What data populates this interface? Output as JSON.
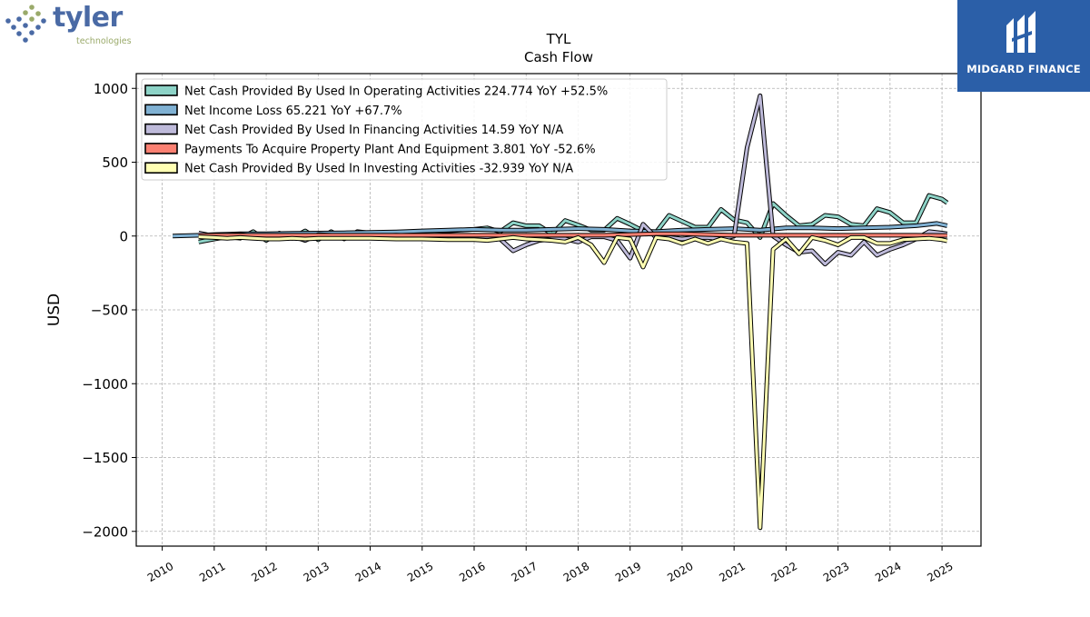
{
  "logo_left": {
    "word": "tyler",
    "sub": "technologies"
  },
  "logo_right": {
    "text": "MIDGARD FINANCE"
  },
  "chart_data": {
    "type": "line",
    "title": "TYL",
    "subtitle": "Cash Flow",
    "ylabel": "USD",
    "xlabel": "",
    "xlim": [
      2009.5,
      2025.75
    ],
    "ylim": [
      -2100,
      1100
    ],
    "yticks": [
      1000,
      500,
      0,
      -500,
      -1000,
      -1500,
      -2000
    ],
    "ytick_labels": [
      "1000",
      "500",
      "0",
      "−500",
      "−1000",
      "−1500",
      "−2000"
    ],
    "xticks": [
      2010,
      2011,
      2012,
      2013,
      2014,
      2015,
      2016,
      2017,
      2018,
      2019,
      2020,
      2021,
      2022,
      2023,
      2024,
      2025
    ],
    "grid": true,
    "legend_position": "upper-left",
    "series": [
      {
        "name": "Net Cash Provided By Used In Operating Activities  224.774 YoY +52.5%",
        "color": "#8dd3c7",
        "points": [
          [
            2010.7,
            -40
          ],
          [
            2011.0,
            -20
          ],
          [
            2011.25,
            -5
          ],
          [
            2011.5,
            -15
          ],
          [
            2011.75,
            30
          ],
          [
            2012.0,
            -30
          ],
          [
            2012.25,
            20
          ],
          [
            2012.5,
            -15
          ],
          [
            2012.75,
            35
          ],
          [
            2013.0,
            -25
          ],
          [
            2013.25,
            30
          ],
          [
            2013.5,
            -20
          ],
          [
            2013.75,
            30
          ],
          [
            2014.0,
            20
          ],
          [
            2014.5,
            20
          ],
          [
            2015.0,
            25
          ],
          [
            2015.5,
            35
          ],
          [
            2016.0,
            45
          ],
          [
            2016.25,
            55
          ],
          [
            2016.5,
            30
          ],
          [
            2016.75,
            90
          ],
          [
            2017.0,
            70
          ],
          [
            2017.25,
            70
          ],
          [
            2017.5,
            15
          ],
          [
            2017.75,
            105
          ],
          [
            2018.0,
            75
          ],
          [
            2018.25,
            40
          ],
          [
            2018.5,
            40
          ],
          [
            2018.75,
            120
          ],
          [
            2019.0,
            80
          ],
          [
            2019.25,
            35
          ],
          [
            2019.5,
            25
          ],
          [
            2019.75,
            140
          ],
          [
            2020.0,
            100
          ],
          [
            2020.25,
            60
          ],
          [
            2020.5,
            60
          ],
          [
            2020.75,
            180
          ],
          [
            2021.0,
            110
          ],
          [
            2021.25,
            90
          ],
          [
            2021.5,
            -10
          ],
          [
            2021.75,
            220
          ],
          [
            2022.0,
            140
          ],
          [
            2022.25,
            70
          ],
          [
            2022.5,
            80
          ],
          [
            2022.75,
            140
          ],
          [
            2023.0,
            130
          ],
          [
            2023.25,
            80
          ],
          [
            2023.5,
            70
          ],
          [
            2023.75,
            185
          ],
          [
            2024.0,
            160
          ],
          [
            2024.25,
            90
          ],
          [
            2024.5,
            90
          ],
          [
            2024.75,
            275
          ],
          [
            2025.0,
            250
          ],
          [
            2025.1,
            225
          ]
        ]
      },
      {
        "name": "Net Income Loss  65.221 YoY +67.7%",
        "color": "#80b1d3",
        "points": [
          [
            2010.2,
            0
          ],
          [
            2010.75,
            5
          ],
          [
            2011.0,
            10
          ],
          [
            2011.5,
            15
          ],
          [
            2012.0,
            15
          ],
          [
            2012.5,
            18
          ],
          [
            2013.0,
            20
          ],
          [
            2013.5,
            22
          ],
          [
            2014.0,
            25
          ],
          [
            2014.5,
            28
          ],
          [
            2015.0,
            35
          ],
          [
            2015.5,
            40
          ],
          [
            2016.0,
            45
          ],
          [
            2016.5,
            40
          ],
          [
            2017.0,
            40
          ],
          [
            2017.5,
            45
          ],
          [
            2018.0,
            50
          ],
          [
            2018.5,
            45
          ],
          [
            2019.0,
            35
          ],
          [
            2019.5,
            30
          ],
          [
            2020.0,
            40
          ],
          [
            2020.5,
            45
          ],
          [
            2021.0,
            50
          ],
          [
            2021.5,
            40
          ],
          [
            2022.0,
            55
          ],
          [
            2022.5,
            55
          ],
          [
            2023.0,
            50
          ],
          [
            2023.5,
            55
          ],
          [
            2024.0,
            60
          ],
          [
            2024.5,
            70
          ],
          [
            2024.9,
            85
          ],
          [
            2025.1,
            70
          ]
        ]
      },
      {
        "name": "Net Cash Provided By Used In Financing Activities  14.59 YoY N/A",
        "color": "#bebada",
        "points": [
          [
            2010.7,
            20
          ],
          [
            2011.0,
            0
          ],
          [
            2011.5,
            10
          ],
          [
            2012.0,
            -10
          ],
          [
            2012.5,
            0
          ],
          [
            2012.75,
            -30
          ],
          [
            2013.0,
            10
          ],
          [
            2013.5,
            0
          ],
          [
            2014.0,
            0
          ],
          [
            2014.5,
            5
          ],
          [
            2015.0,
            0
          ],
          [
            2015.5,
            -10
          ],
          [
            2016.0,
            -5
          ],
          [
            2016.5,
            -20
          ],
          [
            2016.75,
            -100
          ],
          [
            2017.0,
            -60
          ],
          [
            2017.25,
            -30
          ],
          [
            2017.5,
            -20
          ],
          [
            2017.75,
            -20
          ],
          [
            2018.0,
            -40
          ],
          [
            2018.25,
            -5
          ],
          [
            2018.5,
            -5
          ],
          [
            2018.75,
            -30
          ],
          [
            2019.0,
            -150
          ],
          [
            2019.25,
            80
          ],
          [
            2019.5,
            -10
          ],
          [
            2019.75,
            -10
          ],
          [
            2020.0,
            -20
          ],
          [
            2020.25,
            -10
          ],
          [
            2020.5,
            -10
          ],
          [
            2020.75,
            -20
          ],
          [
            2021.0,
            0
          ],
          [
            2021.25,
            600
          ],
          [
            2021.5,
            950
          ],
          [
            2021.75,
            0
          ],
          [
            2022.0,
            -60
          ],
          [
            2022.25,
            -110
          ],
          [
            2022.5,
            -100
          ],
          [
            2022.75,
            -190
          ],
          [
            2023.0,
            -110
          ],
          [
            2023.25,
            -130
          ],
          [
            2023.5,
            -40
          ],
          [
            2023.75,
            -130
          ],
          [
            2024.0,
            -90
          ],
          [
            2024.25,
            -60
          ],
          [
            2024.5,
            -20
          ],
          [
            2024.75,
            30
          ],
          [
            2025.0,
            20
          ],
          [
            2025.1,
            15
          ]
        ]
      },
      {
        "name": "Payments To Acquire Property Plant And Equipment  3.801 YoY -52.6%",
        "color": "#fb8072",
        "points": [
          [
            2010.7,
            5
          ],
          [
            2011.0,
            5
          ],
          [
            2011.5,
            5
          ],
          [
            2012.0,
            5
          ],
          [
            2012.5,
            5
          ],
          [
            2013.0,
            5
          ],
          [
            2013.5,
            5
          ],
          [
            2014.0,
            5
          ],
          [
            2014.5,
            5
          ],
          [
            2015.0,
            5
          ],
          [
            2015.5,
            5
          ],
          [
            2016.0,
            5
          ],
          [
            2016.5,
            5
          ],
          [
            2017.0,
            5
          ],
          [
            2017.5,
            5
          ],
          [
            2018.0,
            5
          ],
          [
            2018.5,
            5
          ],
          [
            2019.0,
            10
          ],
          [
            2019.5,
            15
          ],
          [
            2020.0,
            15
          ],
          [
            2020.5,
            10
          ],
          [
            2021.0,
            5
          ],
          [
            2021.5,
            5
          ],
          [
            2022.0,
            5
          ],
          [
            2022.5,
            5
          ],
          [
            2023.0,
            5
          ],
          [
            2023.5,
            5
          ],
          [
            2024.0,
            5
          ],
          [
            2024.5,
            5
          ],
          [
            2025.1,
            4
          ]
        ]
      },
      {
        "name": "Net Cash Provided By Used In Investing Activities  -32.939 YoY N/A",
        "color": "#ffffb3",
        "points": [
          [
            2010.7,
            -5
          ],
          [
            2011.0,
            -10
          ],
          [
            2011.25,
            -15
          ],
          [
            2011.5,
            -10
          ],
          [
            2011.75,
            -15
          ],
          [
            2012.0,
            -20
          ],
          [
            2012.25,
            -20
          ],
          [
            2012.5,
            -15
          ],
          [
            2012.75,
            -20
          ],
          [
            2013.0,
            -15
          ],
          [
            2013.5,
            -15
          ],
          [
            2014.0,
            -15
          ],
          [
            2014.5,
            -20
          ],
          [
            2015.0,
            -20
          ],
          [
            2015.5,
            -25
          ],
          [
            2016.0,
            -25
          ],
          [
            2016.25,
            -30
          ],
          [
            2016.5,
            -20
          ],
          [
            2016.75,
            -10
          ],
          [
            2017.0,
            -20
          ],
          [
            2017.25,
            -25
          ],
          [
            2017.5,
            -30
          ],
          [
            2017.75,
            -40
          ],
          [
            2018.0,
            -10
          ],
          [
            2018.25,
            -60
          ],
          [
            2018.5,
            -180
          ],
          [
            2018.75,
            -10
          ],
          [
            2019.0,
            -20
          ],
          [
            2019.25,
            -210
          ],
          [
            2019.5,
            -10
          ],
          [
            2019.75,
            -20
          ],
          [
            2020.0,
            -50
          ],
          [
            2020.25,
            -20
          ],
          [
            2020.5,
            -50
          ],
          [
            2020.75,
            -20
          ],
          [
            2021.0,
            -40
          ],
          [
            2021.25,
            -50
          ],
          [
            2021.5,
            -1975
          ],
          [
            2021.75,
            -90
          ],
          [
            2022.0,
            -20
          ],
          [
            2022.25,
            -120
          ],
          [
            2022.5,
            -10
          ],
          [
            2022.75,
            -30
          ],
          [
            2023.0,
            -60
          ],
          [
            2023.25,
            -10
          ],
          [
            2023.5,
            -10
          ],
          [
            2023.75,
            -50
          ],
          [
            2024.0,
            -50
          ],
          [
            2024.25,
            -25
          ],
          [
            2024.5,
            -20
          ],
          [
            2024.75,
            -15
          ],
          [
            2025.0,
            -25
          ],
          [
            2025.1,
            -33
          ]
        ]
      }
    ]
  }
}
